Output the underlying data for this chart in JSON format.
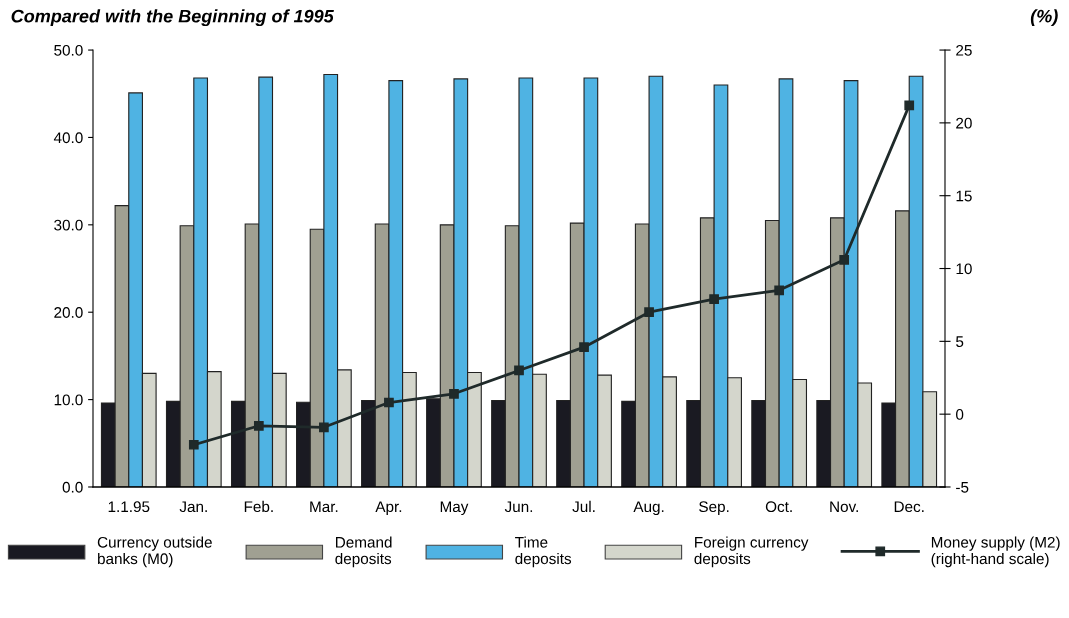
{
  "chart_data": {
    "type": "bar",
    "title": "Compared with the Beginning of 1995",
    "annotations": [
      "(%)"
    ],
    "categories": [
      "1.1.95",
      "Jan.",
      "Feb.",
      "Mar.",
      "Apr.",
      "May",
      "Jun.",
      "Jul.",
      "Aug.",
      "Sep.",
      "Oct.",
      "Nov.",
      "Dec."
    ],
    "series": [
      {
        "name": "Currency outside\nbanks (M0)",
        "color": "#1a1a22",
        "values": [
          9.6,
          9.8,
          9.8,
          9.7,
          9.9,
          10.1,
          9.9,
          9.9,
          9.8,
          9.9,
          9.9,
          9.9,
          9.6
        ]
      },
      {
        "name": "Demand\ndeposits",
        "color": "#a0a092",
        "values": [
          32.2,
          29.9,
          30.1,
          29.5,
          30.1,
          30.0,
          29.9,
          30.2,
          30.1,
          30.8,
          30.5,
          30.8,
          31.6
        ]
      },
      {
        "name": "Time\ndeposits",
        "color": "#4fb3e3",
        "values": [
          45.1,
          46.8,
          46.9,
          47.2,
          46.5,
          46.7,
          46.8,
          46.8,
          47.0,
          46.0,
          46.7,
          46.5,
          47.0
        ]
      },
      {
        "name": "Foreign currency\ndeposits",
        "color": "#d4d6cc",
        "values": [
          13.0,
          13.2,
          13.0,
          13.4,
          13.1,
          13.1,
          12.9,
          12.8,
          12.6,
          12.5,
          12.3,
          11.9,
          10.9
        ]
      },
      {
        "name": "Money supply (M2)\n(right-hand scale)",
        "type": "line",
        "axis": "y2",
        "color": "#1f2a2a",
        "marker": "square",
        "values": [
          null,
          -2.1,
          -0.8,
          -0.9,
          0.8,
          1.4,
          3.0,
          4.6,
          7.0,
          7.9,
          8.5,
          10.6,
          21.2
        ]
      }
    ],
    "ylim": [
      0,
      50
    ],
    "yticks": [
      {
        "value": 0,
        "label": "0.0"
      },
      {
        "value": 10,
        "label": "10.0"
      },
      {
        "value": 20,
        "label": "20.0"
      },
      {
        "value": 30,
        "label": "30.0"
      },
      {
        "value": 40,
        "label": "40.0"
      },
      {
        "value": 50,
        "label": "50.0"
      }
    ],
    "y2lim": [
      -5,
      25
    ],
    "y2ticks": [
      {
        "value": -5,
        "label": "-5"
      },
      0,
      5,
      10,
      15,
      20,
      25
    ],
    "grid": false,
    "legend": "bottom"
  }
}
